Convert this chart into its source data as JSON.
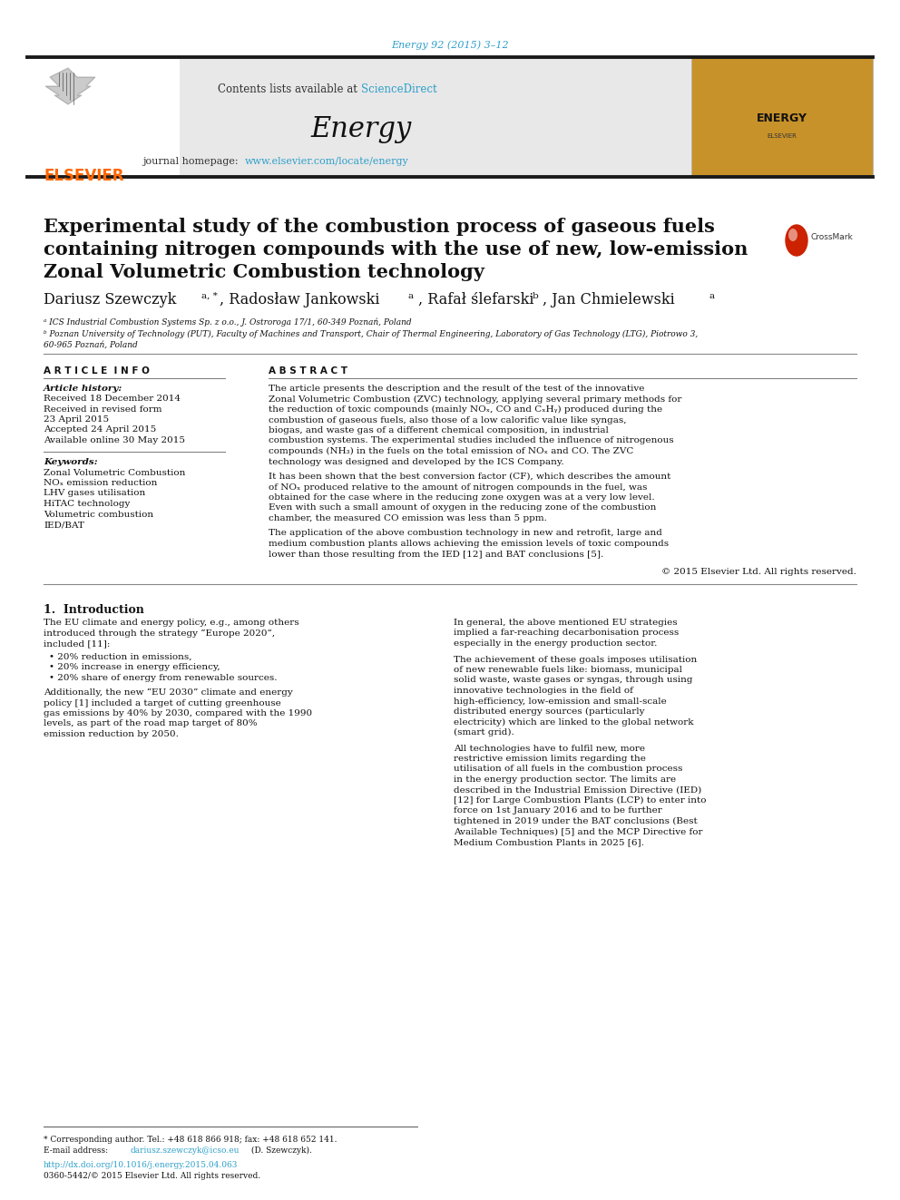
{
  "bg_color": "#ffffff",
  "header_line_color": "#1a1a1a",
  "journal_ref": "Energy 92 (2015) 3–12",
  "journal_ref_color": "#2e9fc9",
  "header_bg": "#e8e8e8",
  "contents_text": "Contents lists available at",
  "sciencedirect_text": "ScienceDirect",
  "sciencedirect_color": "#2e9fc9",
  "journal_name": "Energy",
  "journal_homepage_label": "journal homepage:",
  "journal_homepage_url": "www.elsevier.com/locate/energy",
  "journal_homepage_url_color": "#2e9fc9",
  "paper_title_line1": "Experimental study of the combustion process of gaseous fuels",
  "paper_title_line2": "containing nitrogen compounds with the use of new, low-emission",
  "paper_title_line3": "Zonal Volumetric Combustion technology",
  "affil_a": "ᵃ ICS Industrial Combustion Systems Sp. z o.o., J. Ostroroga 17/1, 60-349 Poznań, Poland",
  "affil_b1": "ᵇ Poznan University of Technology (PUT), Faculty of Machines and Transport, Chair of Thermal Engineering, Laboratory of Gas Technology (LTG), Piotrowo 3,",
  "affil_b2": "60-965 Poznań, Poland",
  "article_info_title": "A R T I C L E  I N F O",
  "article_history_label": "Article history:",
  "history_lines": [
    "Received 18 December 2014",
    "Received in revised form",
    "23 April 2015",
    "Accepted 24 April 2015",
    "Available online 30 May 2015"
  ],
  "keywords_label": "Keywords:",
  "keywords": [
    "Zonal Volumetric Combustion",
    "NOₓ emission reduction",
    "LHV gases utilisation",
    "HiTAC technology",
    "Volumetric combustion",
    "IED/BAT"
  ],
  "abstract_title": "A B S T R A C T",
  "abstract_paragraph1": "The article presents the description and the result of the test of the innovative Zonal Volumetric Combustion (ZVC) technology, applying several primary methods for the reduction of toxic compounds (mainly NOₓ, CO and CₓHᵧ) produced during the combustion of gaseous fuels, also those of a low calorific value like syngas, biogas, and waste gas of a different chemical composition, in industrial combustion systems. The experimental studies included the influence of nitrogenous compounds (NH₃) in the fuels on the total emission of NOₓ and CO. The ZVC technology was designed and developed by the ICS Company.",
  "abstract_paragraph2": "It has been shown that the best conversion factor (CF), which describes the amount of NOₓ produced relative to the amount of nitrogen compounds in the fuel, was obtained for the case where in the reducing zone oxygen was at a very low level. Even with such a small amount of oxygen in the reducing zone of the combustion chamber, the measured CO emission was less than 5 ppm.",
  "abstract_paragraph3": "The application of the above combustion technology in new and retrofit, large and medium combustion plants allows achieving the emission levels of toxic compounds lower than those resulting from the IED [12] and BAT conclusions [5].",
  "copyright": "© 2015 Elsevier Ltd. All rights reserved.",
  "section1_title": "1.  Introduction",
  "section1_col1_para1": "The EU climate and energy policy, e.g., among others introduced through the strategy “Europe 2020”, included [11]:",
  "section1_bullets": [
    "20% reduction in emissions,",
    "20% increase in energy efficiency,",
    "20% share of energy from renewable sources."
  ],
  "section1_col1_para2": "Additionally, the new “EU 2030” climate and energy policy [1] included a target of cutting greenhouse gas emissions by 40% by 2030, compared with the 1990 levels, as part of the road map target of 80% emission reduction by 2050.",
  "section1_col2_para1": "In general, the above mentioned EU strategies implied a far-reaching decarbonisation process especially in the energy production sector.",
  "section1_col2_para2": "The achievement of these goals imposes utilisation of new renewable fuels like: biomass, municipal solid waste, waste gases or syngas, through using innovative technologies in the field of high-efficiency, low-emission and small-scale distributed energy sources (particularly electricity) which are linked to the global network (smart grid).",
  "section1_col2_para3": "All technologies have to fulfil new, more restrictive emission limits regarding the utilisation of all fuels in the combustion process in the energy production sector. The limits are described in the Industrial Emission Directive (IED) [12] for Large Combustion Plants (LCP) to enter into force on 1st January 2016 and to be further tightened in 2019 under the BAT conclusions (Best Available Techniques) [5] and the MCP Directive for Medium Combustion Plants in 2025 [6].",
  "footnote_corresponding": "* Corresponding author. Tel.: +48 618 866 918; fax: +48 618 652 141.",
  "footnote_email_color": "#2e9fc9",
  "doi_text": "http://dx.doi.org/10.1016/j.energy.2015.04.063",
  "doi_color": "#2e9fc9",
  "issn_text": "0360-5442/© 2015 Elsevier Ltd. All rights reserved.",
  "elsevier_color": "#ff6600",
  "separator_color": "#1a1a1a"
}
